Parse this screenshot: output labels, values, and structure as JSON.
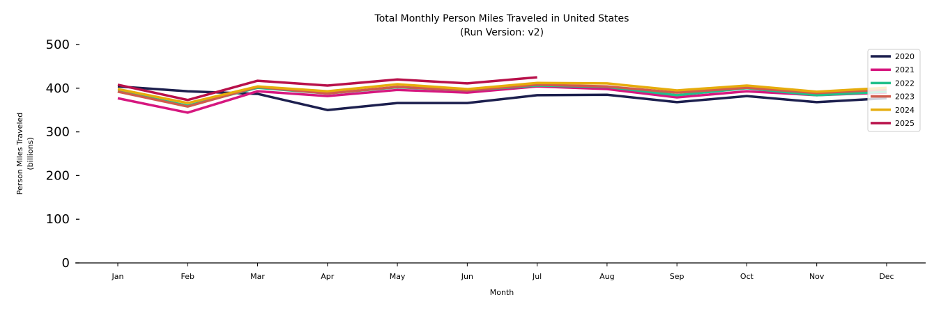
{
  "chart_data": {
    "type": "line",
    "title": "Total Monthly Person Miles Traveled in United States",
    "subtitle": "(Run Version: v2)",
    "xlabel": "Month",
    "ylabel": "Person Miles Traveled",
    "ylabel_unit": "(billions)",
    "ylim": [
      0,
      500
    ],
    "yticks": [
      "0",
      "100",
      "200",
      "300",
      "400",
      "500"
    ],
    "ytick_values": [
      0,
      100,
      200,
      300,
      400,
      500
    ],
    "grid": false,
    "legend_placement": "top-right",
    "categories": [
      "Jan",
      "Feb",
      "Mar",
      "Apr",
      "May",
      "Jun",
      "Jul",
      "Aug",
      "Sep",
      "Oct",
      "Nov",
      "Dec"
    ],
    "series": [
      {
        "name": "2020",
        "color": "#1c1f4e",
        "values": [
          404,
          393,
          387,
          350,
          366,
          366,
          384,
          385,
          368,
          382,
          368,
          377
        ]
      },
      {
        "name": "2021",
        "color": "#d6177f",
        "values": [
          377,
          344,
          393,
          382,
          396,
          390,
          404,
          398,
          379,
          393,
          384,
          390
        ]
      },
      {
        "name": "2022",
        "color": "#22c08a",
        "values": [
          393,
          360,
          401,
          388,
          402,
          395,
          406,
          403,
          384,
          400,
          384,
          392
        ]
      },
      {
        "name": "2023",
        "color": "#d05c4c",
        "values": [
          392,
          358,
          403,
          388,
          403,
          395,
          408,
          404,
          390,
          401,
          389,
          397
        ]
      },
      {
        "name": "2024",
        "color": "#e6ac0c",
        "values": [
          398,
          366,
          404,
          393,
          409,
          398,
          412,
          411,
          395,
          406,
          392,
          401
        ]
      },
      {
        "name": "2025",
        "color": "#b8104a",
        "values": [
          408,
          373,
          417,
          406,
          420,
          411,
          425,
          null,
          null,
          null,
          null,
          null
        ]
      }
    ]
  }
}
